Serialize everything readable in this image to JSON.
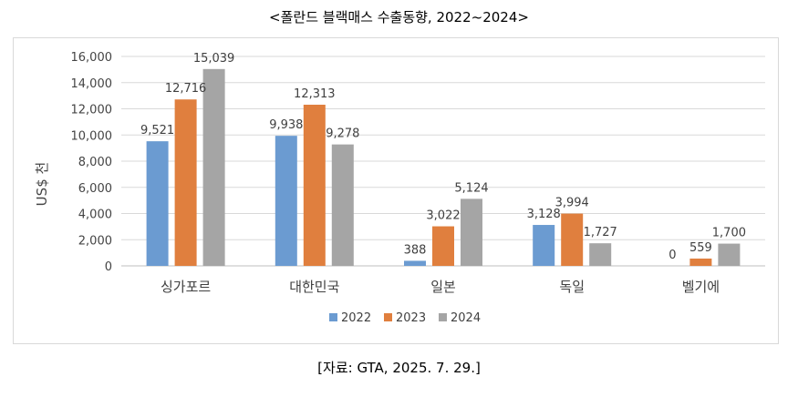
{
  "title": "<폴란드 블랙매스 수출동향, 2022~2024>",
  "source": "[자료: GTA, 2025. 7. 29.]",
  "chart_data": {
    "type": "bar",
    "categories": [
      "싱가포르",
      "대한민국",
      "일본",
      "독일",
      "벨기에"
    ],
    "series": [
      {
        "name": "2022",
        "color": "#6b9bd1",
        "values": [
          9521,
          9938,
          388,
          3128,
          0
        ]
      },
      {
        "name": "2023",
        "color": "#e07f3e",
        "values": [
          12716,
          12313,
          3022,
          3994,
          559
        ]
      },
      {
        "name": "2024",
        "color": "#a5a5a5",
        "values": [
          15039,
          9278,
          5124,
          1727,
          1700
        ]
      }
    ],
    "data_labels": [
      [
        "9,521",
        "9,938",
        "388",
        "3,128",
        "0"
      ],
      [
        "12,716",
        "12,313",
        "3,022",
        "3,994",
        "559"
      ],
      [
        "15,039",
        "9,278",
        "5,124",
        "1,727",
        "1,700"
      ]
    ],
    "ylabel": "US$ 천",
    "ylim": [
      0,
      16000
    ],
    "yticks": [
      0,
      2000,
      4000,
      6000,
      8000,
      10000,
      12000,
      14000,
      16000
    ],
    "ytick_labels": [
      "0",
      "2,000",
      "4,000",
      "6,000",
      "8,000",
      "10,000",
      "12,000",
      "14,000",
      "16,000"
    ],
    "grid": true,
    "legend_position": "bottom"
  }
}
